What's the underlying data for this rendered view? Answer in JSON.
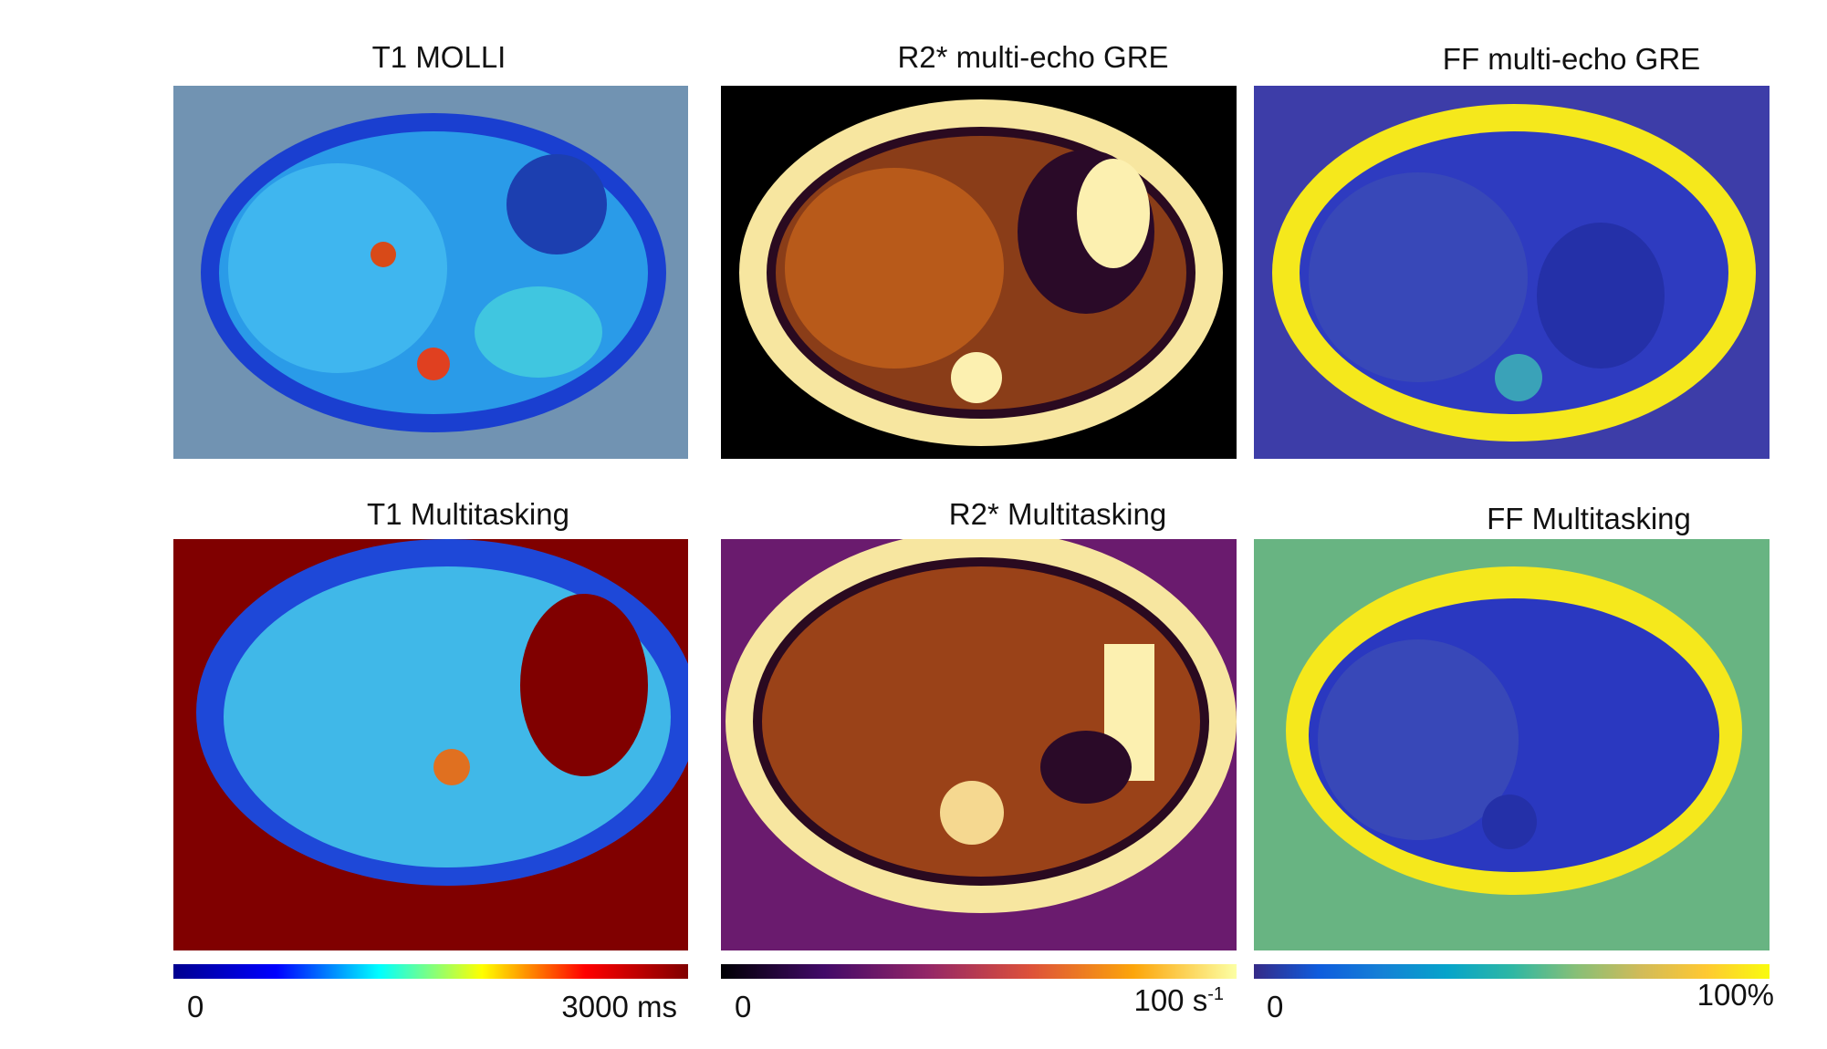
{
  "panels": [
    {
      "title": "T1 MOLLI"
    },
    {
      "title": "R2* multi-echo GRE"
    },
    {
      "title": "FF multi-echo GRE"
    },
    {
      "title": "T1 Multitasking"
    },
    {
      "title": "R2* Multitasking"
    },
    {
      "title": "FF Multitasking"
    }
  ],
  "colorbars": [
    {
      "min": "0",
      "max": "3000 ms"
    },
    {
      "min": "0",
      "max": "100 s",
      "max_sup": "-1"
    },
    {
      "min": "0",
      "max": "100%"
    }
  ]
}
